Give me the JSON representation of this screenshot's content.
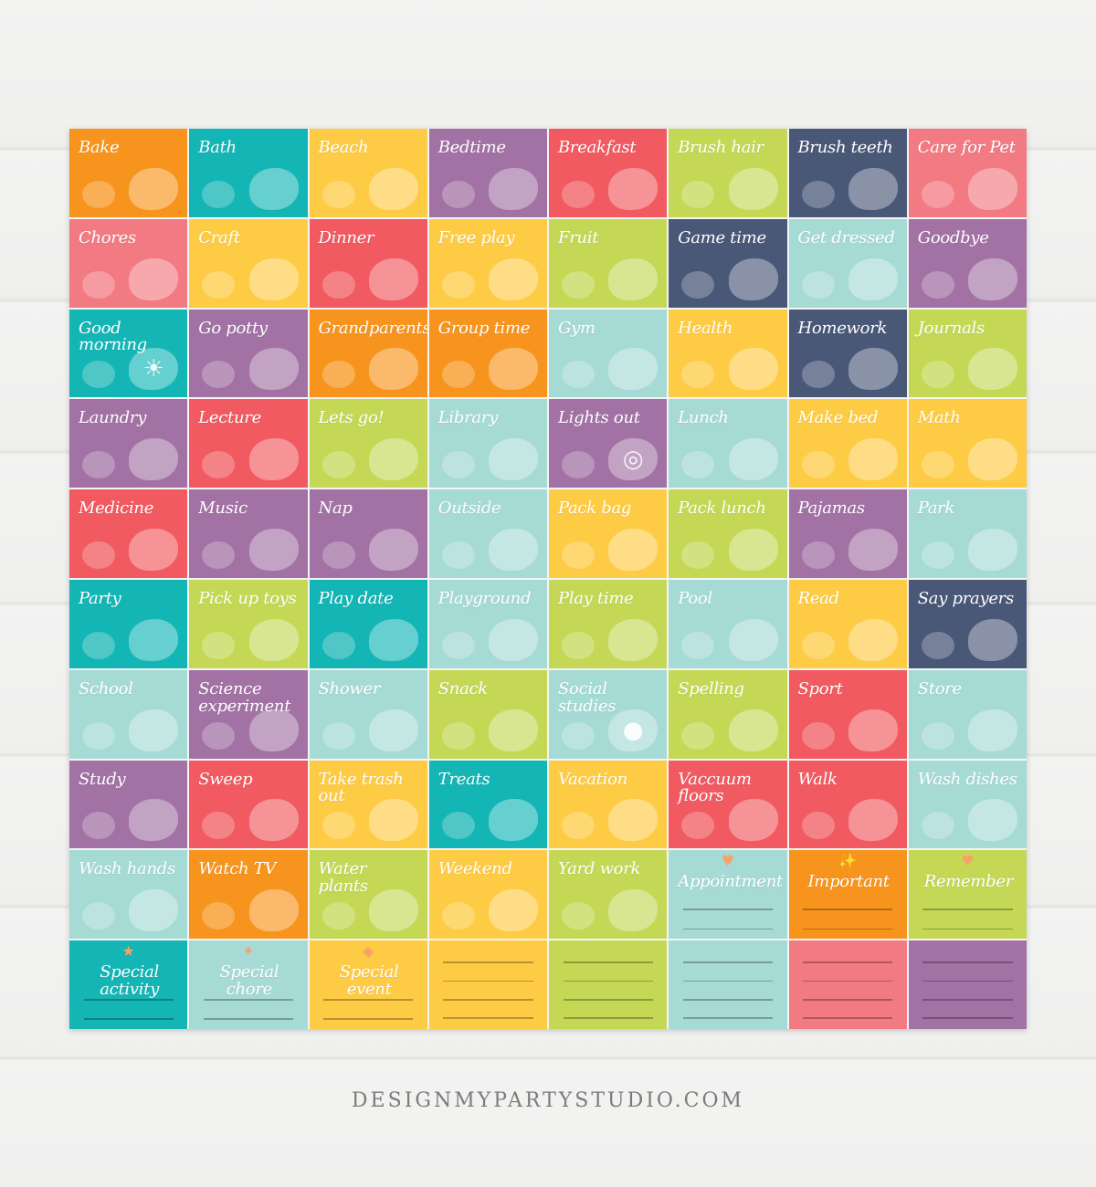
{
  "palette": {
    "orange": "#f7941d",
    "teal": "#14b5b5",
    "yellow": "#fecb45",
    "purple": "#a272a5",
    "coral": "#f15a60",
    "lime": "#c4d856",
    "navy": "#4a5878",
    "pink": "#f27a82",
    "aqua": "#a6dad5"
  },
  "cards": [
    {
      "label": "Bake",
      "color": "orange",
      "icon": "cake-cookies-icon"
    },
    {
      "label": "Bath",
      "color": "teal",
      "icon": "bathtub-icon"
    },
    {
      "label": "Beach",
      "color": "yellow",
      "icon": "beach-ball-icon"
    },
    {
      "label": "Bedtime",
      "color": "purple",
      "icon": "moon-pillow-icon"
    },
    {
      "label": "Breakfast",
      "color": "coral",
      "icon": "toast-egg-icon"
    },
    {
      "label": "Brush hair",
      "color": "lime",
      "icon": "comb-brush-icon"
    },
    {
      "label": "Brush teeth",
      "color": "navy",
      "icon": "toothpaste-icon"
    },
    {
      "label": "Care for Pet",
      "color": "pink",
      "icon": "pet-bowl-icon"
    },
    {
      "label": "Chores",
      "color": "pink",
      "icon": "vacuum-broom-icon"
    },
    {
      "label": "Craft",
      "color": "yellow",
      "icon": "paint-palette-icon"
    },
    {
      "label": "Dinner",
      "color": "coral",
      "icon": "pizza-broccoli-icon"
    },
    {
      "label": "Free play",
      "color": "yellow",
      "icon": "kids-playing-icon"
    },
    {
      "label": "Fruit",
      "color": "lime",
      "icon": "fruit-icon"
    },
    {
      "label": "Game time",
      "color": "navy",
      "icon": "game-controller-icon"
    },
    {
      "label": "Get dressed",
      "color": "aqua",
      "icon": "kids-dressed-icon"
    },
    {
      "label": "Goodbye",
      "color": "purple",
      "icon": "waving-hand-icon"
    },
    {
      "label": "Good morning",
      "color": "teal",
      "icon": "sun-icon"
    },
    {
      "label": "Go potty",
      "color": "purple",
      "icon": "toilet-paper-icon"
    },
    {
      "label": "Grandparents",
      "color": "orange",
      "icon": "grandparents-icon"
    },
    {
      "label": "Group time",
      "color": "orange",
      "icon": "group-kids-icon"
    },
    {
      "label": "Gym",
      "color": "aqua",
      "icon": "jump-rope-icon"
    },
    {
      "label": "Health",
      "color": "yellow",
      "icon": "apple-books-icon"
    },
    {
      "label": "Homework",
      "color": "navy",
      "icon": "test-paper-icon"
    },
    {
      "label": "Journals",
      "color": "lime",
      "icon": "journal-icon"
    },
    {
      "label": "Laundry",
      "color": "purple",
      "icon": "laundry-basket-icon"
    },
    {
      "label": "Lecture",
      "color": "coral",
      "icon": "chalkboard-icon"
    },
    {
      "label": "Lets go!",
      "color": "lime",
      "icon": "car-icon"
    },
    {
      "label": "Library",
      "color": "aqua",
      "icon": "books-icon"
    },
    {
      "label": "Lights out",
      "color": "purple",
      "icon": "light-bulb-icon"
    },
    {
      "label": "Lunch",
      "color": "aqua",
      "icon": "sandwich-milk-icon"
    },
    {
      "label": "Make bed",
      "color": "yellow",
      "icon": "bed-icon"
    },
    {
      "label": "Math",
      "color": "yellow",
      "icon": "ruler-math-icon"
    },
    {
      "label": "Medicine",
      "color": "coral",
      "icon": "pills-icon"
    },
    {
      "label": "Music",
      "color": "purple",
      "icon": "guitar-icon"
    },
    {
      "label": "Nap",
      "color": "purple",
      "icon": "pillow-icon"
    },
    {
      "label": "Outside",
      "color": "aqua",
      "icon": "trees-icon"
    },
    {
      "label": "Pack bag",
      "color": "yellow",
      "icon": "backpack-icon"
    },
    {
      "label": "Pack lunch",
      "color": "lime",
      "icon": "lunch-bag-icon"
    },
    {
      "label": "Pajamas",
      "color": "purple",
      "icon": "pajamas-icon"
    },
    {
      "label": "Park",
      "color": "aqua",
      "icon": "park-icon"
    },
    {
      "label": "Party",
      "color": "teal",
      "icon": "party-cake-icon"
    },
    {
      "label": "Pick up toys",
      "color": "lime",
      "icon": "toy-basket-icon"
    },
    {
      "label": "Play date",
      "color": "teal",
      "icon": "seesaw-icon"
    },
    {
      "label": "Playground",
      "color": "aqua",
      "icon": "swing-slide-icon"
    },
    {
      "label": "Play time",
      "color": "lime",
      "icon": "kite-icon"
    },
    {
      "label": "Pool",
      "color": "aqua",
      "icon": "flip-flops-icon"
    },
    {
      "label": "Read",
      "color": "yellow",
      "icon": "girl-reading-icon"
    },
    {
      "label": "Say prayers",
      "color": "navy",
      "icon": "bible-icon"
    },
    {
      "label": "School",
      "color": "aqua",
      "icon": "school-bus-icon"
    },
    {
      "label": "Science experiment",
      "color": "purple",
      "icon": "flask-icon"
    },
    {
      "label": "Shower",
      "color": "aqua",
      "icon": "soap-duck-icon"
    },
    {
      "label": "Snack",
      "color": "lime",
      "icon": "pretzel-icon"
    },
    {
      "label": "Social studies",
      "color": "aqua",
      "icon": "globe-icon"
    },
    {
      "label": "Spelling",
      "color": "lime",
      "icon": "pencil-paper-icon"
    },
    {
      "label": "Sport",
      "color": "coral",
      "icon": "balls-icon"
    },
    {
      "label": "Store",
      "color": "aqua",
      "icon": "grocery-bag-icon"
    },
    {
      "label": "Study",
      "color": "purple",
      "icon": "notepad-pencils-icon"
    },
    {
      "label": "Sweep",
      "color": "coral",
      "icon": "broom-icon"
    },
    {
      "label": "Take trash out",
      "color": "yellow",
      "icon": "trash-bag-icon"
    },
    {
      "label": "Treats",
      "color": "teal",
      "icon": "donut-candy-icon"
    },
    {
      "label": "Vacation",
      "color": "yellow",
      "icon": "popsicle-icon"
    },
    {
      "label": "Vaccuum floors",
      "color": "coral",
      "icon": "vacuum-icon"
    },
    {
      "label": "Walk",
      "color": "coral",
      "icon": "boy-walking-icon"
    },
    {
      "label": "Wash dishes",
      "color": "aqua",
      "icon": "dish-sponge-icon"
    },
    {
      "label": "Wash hands",
      "color": "aqua",
      "icon": "soap-bottle-icon"
    },
    {
      "label": "Watch TV",
      "color": "orange",
      "icon": "tv-icon"
    },
    {
      "label": "Water plants",
      "color": "lime",
      "icon": "watering-can-icon"
    },
    {
      "label": "Weekend",
      "color": "yellow",
      "icon": "fishing-icon"
    },
    {
      "label": "Yard work",
      "color": "lime",
      "icon": "lawn-mower-icon"
    },
    {
      "label": "Appointment",
      "color": "aqua",
      "icon": "heart-icon",
      "lines": 2
    },
    {
      "label": "Important",
      "color": "orange",
      "icon": "sparkle-icon",
      "lines": 2
    },
    {
      "label": "Remember",
      "color": "lime",
      "icon": "heart-icon",
      "lines": 2
    },
    {
      "label": "Special activity",
      "color": "teal",
      "icon": "star-icon",
      "lines": 2
    },
    {
      "label": "Special chore",
      "color": "aqua",
      "icon": "stars-icon",
      "lines": 2
    },
    {
      "label": "Special event",
      "color": "yellow",
      "icon": "diamond-icon",
      "lines": 2
    },
    {
      "label": "",
      "color": "yellow",
      "icon": "",
      "lines": 4
    },
    {
      "label": "",
      "color": "lime",
      "icon": "",
      "lines": 4
    },
    {
      "label": "",
      "color": "aqua",
      "icon": "",
      "lines": 4
    },
    {
      "label": "",
      "color": "pink",
      "icon": "",
      "lines": 4
    },
    {
      "label": "",
      "color": "purple",
      "icon": "",
      "lines": 4
    }
  ],
  "footer": "DESIGNMYPARTYSTUDIO.COM"
}
